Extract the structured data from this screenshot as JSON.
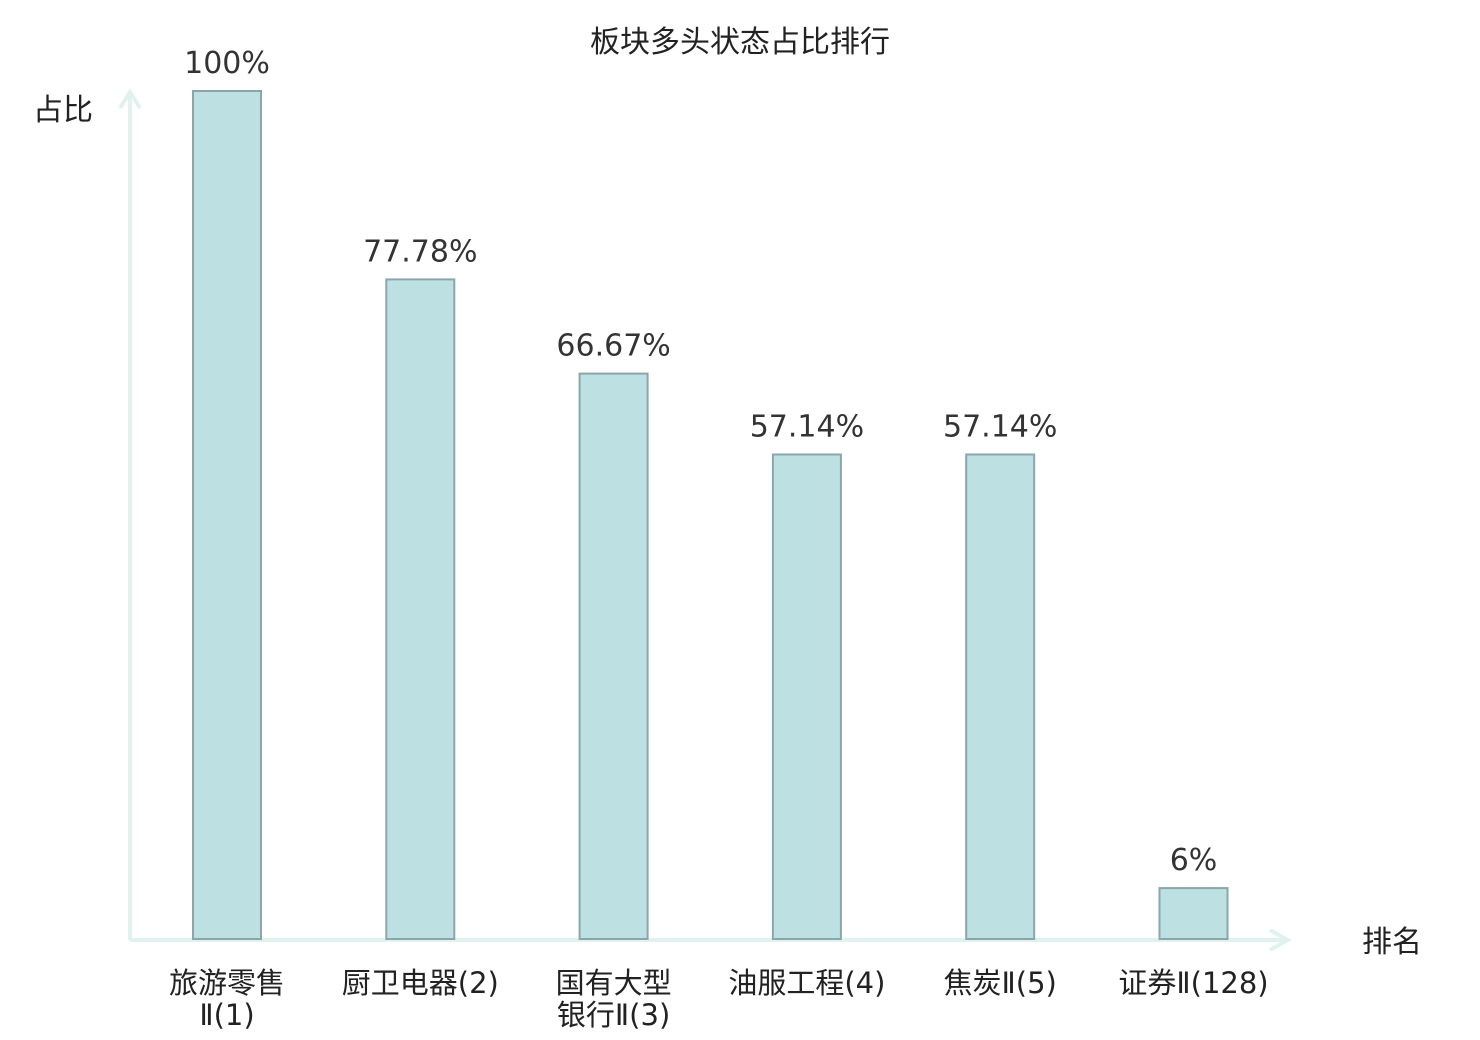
{
  "chart_data": {
    "type": "bar",
    "title": "板块多头状态占比排行",
    "xlabel": "排名",
    "ylabel": "占比",
    "categories": [
      [
        "旅游零售",
        "Ⅱ(1)"
      ],
      [
        "厨卫电器(2)"
      ],
      [
        "国有大型",
        "银行Ⅱ(3)"
      ],
      [
        "油服工程(4)"
      ],
      [
        "焦炭Ⅱ(5)"
      ],
      [
        "证券Ⅱ(128)"
      ]
    ],
    "values": [
      100,
      77.78,
      66.67,
      57.14,
      57.14,
      6
    ],
    "value_labels": [
      "100%",
      "77.78%",
      "66.67%",
      "57.14%",
      "57.14%",
      "6%"
    ],
    "highlight_index": 5,
    "ylim": [
      0,
      100
    ],
    "grid": false,
    "colors": {
      "bar_fill": "#bde0e2",
      "bar_stroke": "#8aa6aa",
      "axis": "#dff2ee",
      "text": "#222222",
      "value_text": "#333333",
      "highlight_text": "#e8211f"
    }
  }
}
